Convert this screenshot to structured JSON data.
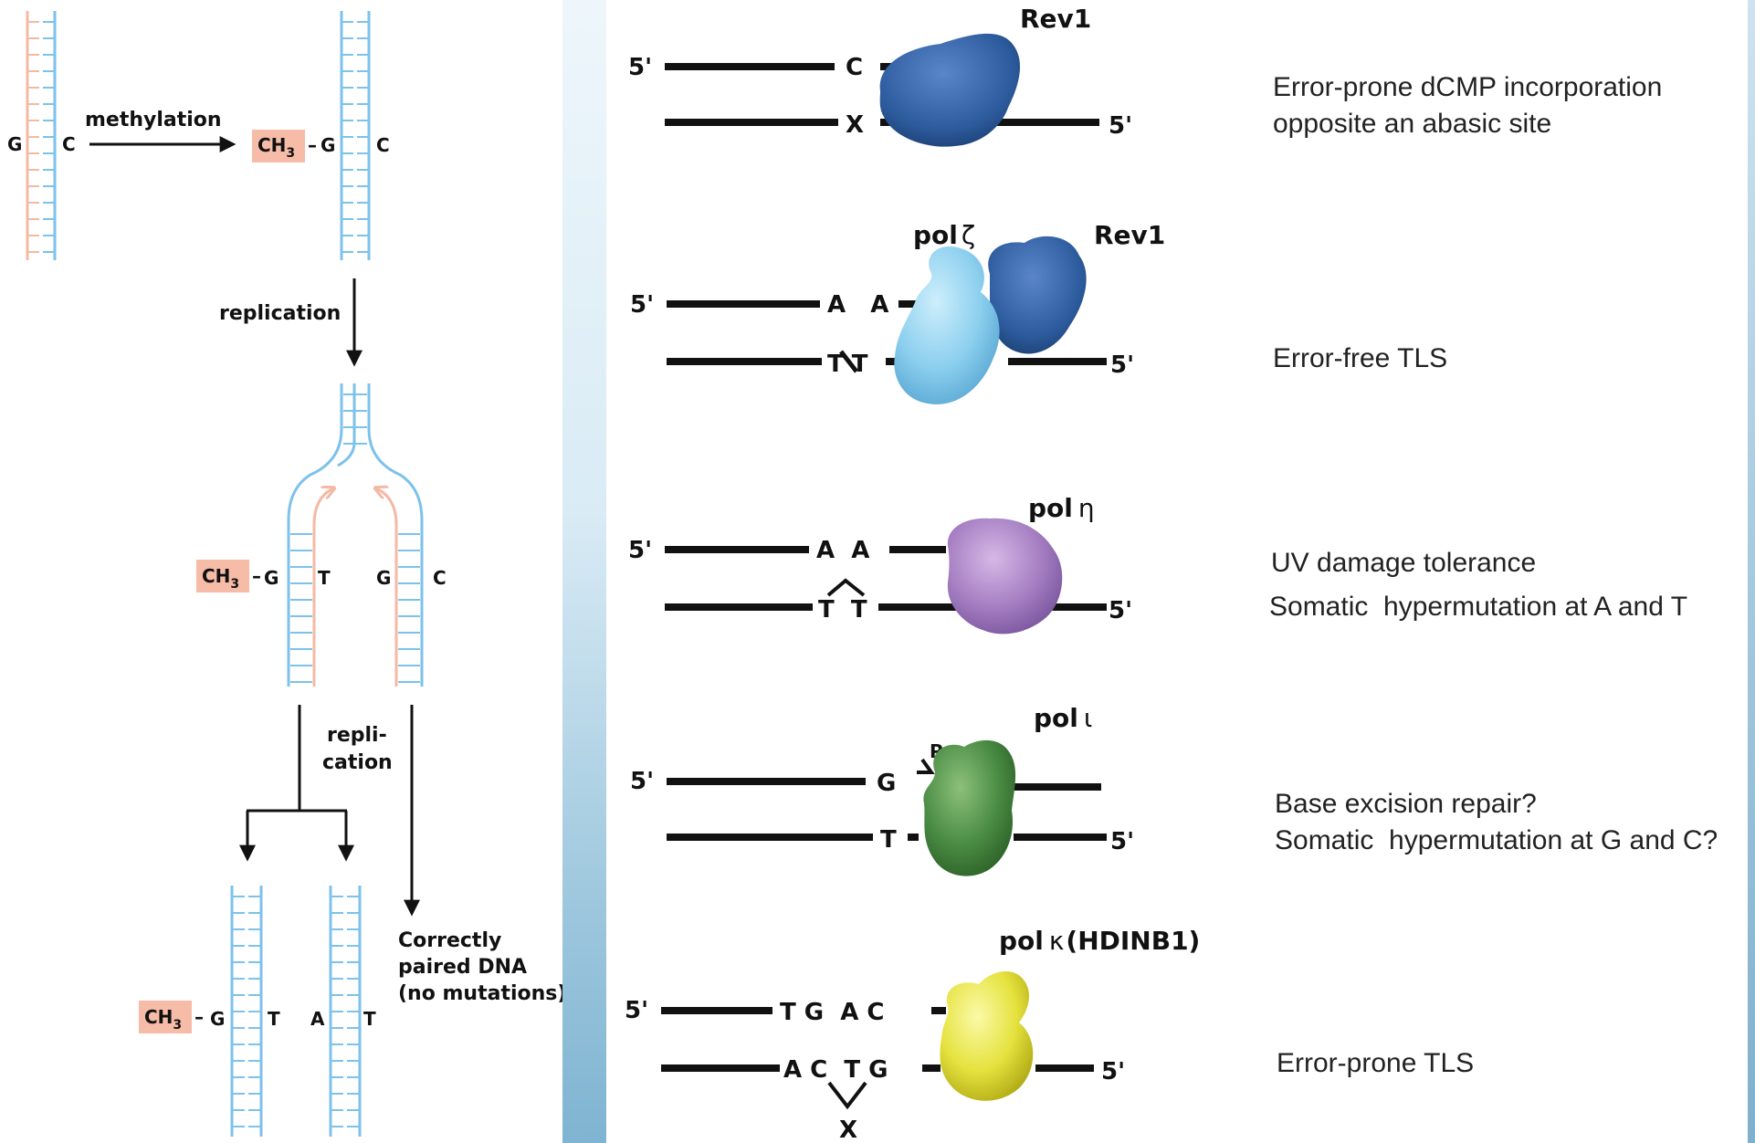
{
  "left": {
    "top_pair": {
      "g": "G",
      "c": "C"
    },
    "methylation_label": "methylation",
    "methylated_pair": {
      "ch3": "CH",
      "sub3": "3",
      "dash": "–",
      "g": "G",
      "c": "C"
    },
    "replication_label": "replication",
    "fork": {
      "left": {
        "ch3": "CH",
        "sub3": "3",
        "dash": "–",
        "g": "G",
        "t": "T"
      },
      "right": {
        "g": "G",
        "c": "C"
      }
    },
    "repli_label_1": "repli-",
    "repli_label_2": "cation",
    "bottom": {
      "ch3": "CH",
      "sub3": "3",
      "dash": "–",
      "g": "G",
      "t1": "T",
      "a": "A",
      "t2": "T"
    },
    "correct_label": [
      "Correctly",
      "paired DNA",
      "(no mutations)"
    ],
    "colors": {
      "parent_strand": "#f4b9a5",
      "new_strand": "#7cc2ea",
      "methyl_box": "#f6bca7"
    }
  },
  "right": {
    "rows": [
      {
        "enzyme": "Rev1",
        "top_five": "5'",
        "top_bases": "C",
        "bottom_bases": "X",
        "bottom_five": "5'",
        "desc": [
          "Error-prone dCMP incorporation",
          "opposite an abasic site"
        ],
        "color": "#2f5fa6"
      },
      {
        "enzyme": "Rev1",
        "enzyme2": "pol",
        "enzyme2_greek": "ζ",
        "top_five": "5'",
        "top_bases": "A   A",
        "bottom_bases": "T T",
        "bottom_five": "5'",
        "desc": [
          "Error-free TLS"
        ],
        "color": "#2f5fa6",
        "color2": "#8fd0ee"
      },
      {
        "enzyme": "pol",
        "enzyme_greek": "η",
        "top_five": "5'",
        "top_bases": "A  A",
        "bottom_bases": "T  T",
        "bottom_five": "5'",
        "desc": [
          "UV damage tolerance",
          "Somatic  hypermutation at A and T"
        ],
        "color": "#9a72b8"
      },
      {
        "enzyme": "pol",
        "enzyme_greek": "ι",
        "top_five": "5'",
        "top_bases": "G",
        "p_label": "P",
        "bottom_bases": "T",
        "bottom_five": "5'",
        "desc": [
          "Base excision repair?",
          "Somatic  hypermutation at G and C?"
        ],
        "color": "#3f8a3c"
      },
      {
        "enzyme": "pol",
        "enzyme_greek": "κ",
        "enzyme_suffix": "(HDINB1)",
        "top_five": "5'",
        "top_bases": "T G  A C",
        "bottom_bases": "A C  T G",
        "bottom_five": "5'",
        "x_label": "X",
        "desc": [
          "Error-prone TLS"
        ],
        "color": "#d9d62c"
      }
    ]
  }
}
